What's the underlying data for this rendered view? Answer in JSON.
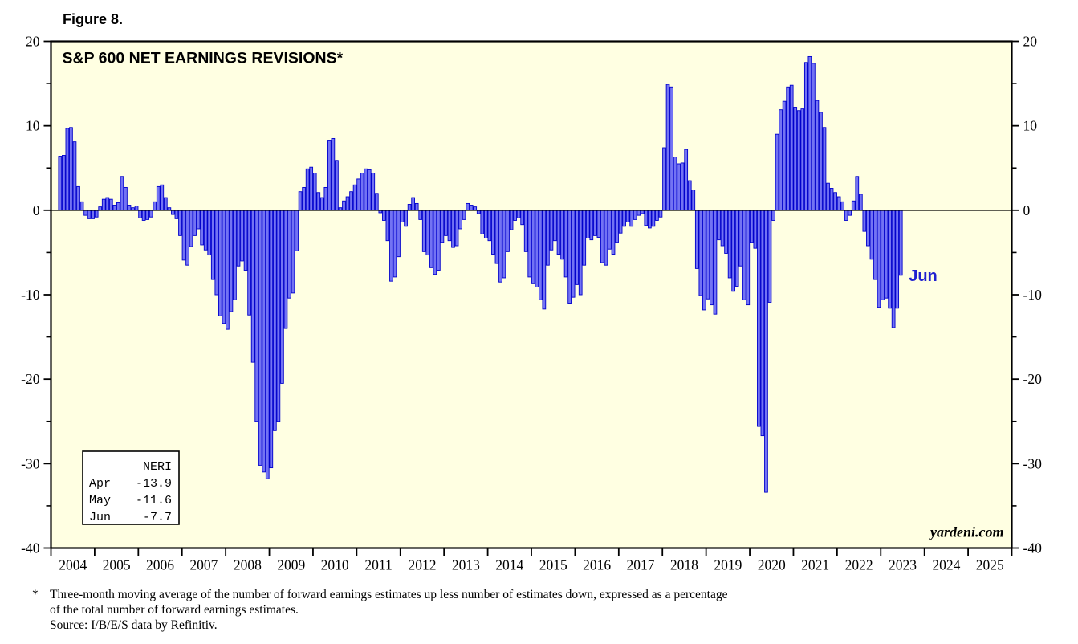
{
  "figure_label": "Figure 8.",
  "title": "S&P 600 NET EARNINGS REVISIONS*",
  "legend": {
    "header": "NERI",
    "rows": [
      {
        "month": "Apr",
        "value": "-13.9"
      },
      {
        "month": "May",
        "value": "-11.6"
      },
      {
        "month": "Jun",
        "value": "-7.7"
      }
    ]
  },
  "annotations": {
    "last_point_label": "Jun",
    "watermark": "yardeni.com"
  },
  "footnote": {
    "marker": "*",
    "line1": "Three-month moving average of the number of forward earnings estimates up less number of estimates down, expressed as a percentage",
    "line2": "of the total number of forward earnings estimates.",
    "line3": "Source: I/B/E/S data by Refinitiv."
  },
  "chart_data": {
    "type": "bar",
    "title": "S&P 600 NET EARNINGS REVISIONS*",
    "frequency": "monthly",
    "start": "2004-03",
    "end": "2023-06",
    "ylim": [
      -40,
      20
    ],
    "y_major_ticks": [
      20,
      10,
      0,
      -10,
      -20,
      -30,
      -40
    ],
    "y_minor_ticks": [
      15,
      5,
      -5,
      -15,
      -25,
      -35
    ],
    "x_year_labels": [
      "2004",
      "2005",
      "2006",
      "2007",
      "2008",
      "2009",
      "2010",
      "2011",
      "2012",
      "2013",
      "2014",
      "2015",
      "2016",
      "2017",
      "2018",
      "2019",
      "2020",
      "2021",
      "2022",
      "2023",
      "2024",
      "2025"
    ],
    "grid": false,
    "legend_position": "bottom-left-inside",
    "plot_bg": "#ffffe2",
    "bar_color": "#7373f3",
    "bar_edge_color": "#0000cc",
    "accent_blue": "#2020d0",
    "values": [
      6.4,
      6.5,
      9.7,
      9.8,
      8.1,
      2.8,
      1.0,
      -0.6,
      -1.0,
      -1.0,
      -0.8,
      0.4,
      1.3,
      1.5,
      1.3,
      0.6,
      0.9,
      4.0,
      2.7,
      0.6,
      0.3,
      0.5,
      -0.9,
      -1.2,
      -1.1,
      -0.8,
      1.0,
      2.8,
      3.0,
      1.5,
      0.3,
      -0.5,
      -1.0,
      -3.0,
      -5.9,
      -6.5,
      -4.3,
      -3.0,
      -2.2,
      -4.1,
      -4.7,
      -5.3,
      -8.2,
      -10.0,
      -12.5,
      -13.4,
      -14.1,
      -12.0,
      -10.6,
      -6.6,
      -6.0,
      -7.1,
      -12.4,
      -18.0,
      -25.0,
      -30.2,
      -31.0,
      -31.8,
      -30.5,
      -26.1,
      -25.0,
      -20.5,
      -14.0,
      -10.4,
      -9.8,
      -4.8,
      2.2,
      2.7,
      4.9,
      5.1,
      4.4,
      2.1,
      1.5,
      2.7,
      8.3,
      8.5,
      5.9,
      0.3,
      1.1,
      1.6,
      2.2,
      3.0,
      3.7,
      4.4,
      4.9,
      4.8,
      4.4,
      2.0,
      -0.3,
      -1.2,
      -3.6,
      -8.4,
      -7.9,
      -5.5,
      -1.4,
      -1.9,
      0.7,
      1.5,
      0.8,
      -1.1,
      -4.9,
      -5.3,
      -6.8,
      -7.6,
      -7.1,
      -3.8,
      -3.0,
      -3.6,
      -4.4,
      -4.2,
      -2.2,
      -1.1,
      0.8,
      0.6,
      0.4,
      -0.4,
      -2.8,
      -3.3,
      -3.6,
      -5.2,
      -6.3,
      -8.5,
      -8.0,
      -4.9,
      -2.3,
      -1.2,
      -0.9,
      -1.7,
      -4.9,
      -7.9,
      -8.7,
      -9.1,
      -10.6,
      -11.7,
      -6.5,
      -4.7,
      -3.6,
      -5.2,
      -5.8,
      -7.9,
      -11.0,
      -10.3,
      -8.8,
      -10.0,
      -6.5,
      -3.3,
      -3.5,
      -3.0,
      -3.2,
      -6.2,
      -6.5,
      -4.6,
      -5.2,
      -3.8,
      -2.7,
      -1.9,
      -1.4,
      -1.9,
      -1.1,
      -0.6,
      -0.4,
      -1.8,
      -2.1,
      -1.9,
      -1.2,
      -0.8,
      7.4,
      14.9,
      14.6,
      6.3,
      5.5,
      5.6,
      7.2,
      3.5,
      2.4,
      -6.9,
      -10.1,
      -11.8,
      -10.5,
      -11.2,
      -12.3,
      -3.5,
      -4.2,
      -5.1,
      -8.0,
      -9.6,
      -9.0,
      -6.6,
      -10.6,
      -11.2,
      -3.8,
      -4.5,
      -25.6,
      -26.7,
      -33.4,
      -10.9,
      -1.2,
      9.0,
      11.9,
      12.9,
      14.6,
      14.8,
      12.2,
      11.8,
      12.0,
      17.5,
      18.2,
      17.4,
      13.0,
      11.6,
      9.8,
      3.2,
      2.6,
      2.1,
      1.6,
      1.0,
      -1.2,
      -0.6,
      1.1,
      4.0,
      1.9,
      -2.5,
      -4.2,
      -5.8,
      -8.2,
      -11.5,
      -10.6,
      -10.4,
      -11.6,
      -13.9,
      -11.6,
      -7.7
    ]
  }
}
